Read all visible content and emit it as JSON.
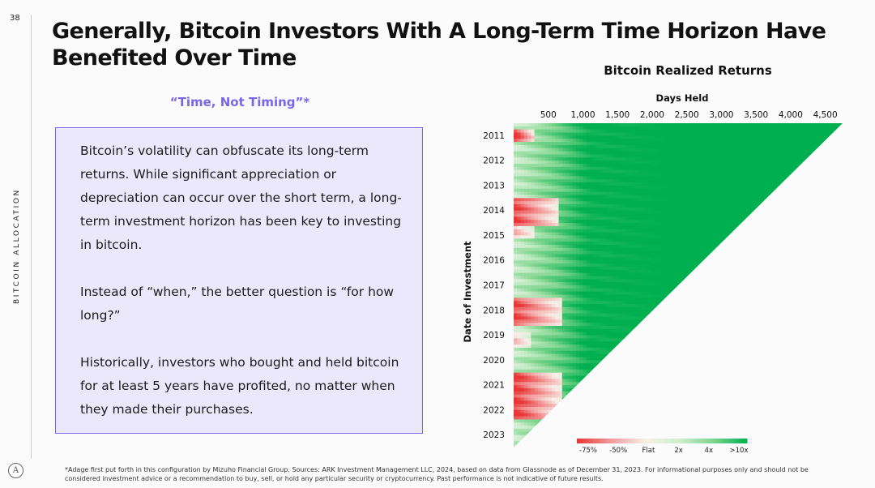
{
  "page": {
    "number": "38",
    "side_label": "BITCOIN ALLOCATION",
    "logo_glyph": "A",
    "title": "Generally, Bitcoin Investors With A Long-Term Time Horizon Have Benefited Over Time",
    "quote": "“Time, Not Timing”*",
    "paragraphs": [
      "Bitcoin’s volatility can obfuscate its long-term returns. While significant appreciation or depreciation can occur over the short term, a long-term investment horizon has been key to investing in bitcoin.",
      "Instead of “when,” the better question is “for how long?”",
      "Historically, investors who bought and held bitcoin for at least 5 years have profited, no matter when they made their purchases."
    ],
    "footnote": "*Adage first put forth in this configuration by Mizuho Financial Group. Sources: ARK Investment Management LLC, 2024, based on data from Glassnode as of December 31, 2023. For informational purposes only and should not be considered investment advice or a recommendation to buy, sell, or hold any particular security or cryptocurrency. Past performance is not indicative of future results."
  },
  "colors": {
    "accent": "#7b66e8",
    "box_fill": "#ebe8fb",
    "gain": "#00b050",
    "loss": "#ee3b3b",
    "flat": "#f7efe8"
  },
  "chart_data": {
    "type": "heatmap",
    "title": "Bitcoin Realized Returns",
    "xlabel": "Days Held",
    "ylabel": "Date of Investment",
    "x_ticks": [
      500,
      1000,
      1500,
      2000,
      2500,
      3000,
      3500,
      4000,
      4500
    ],
    "x_tick_labels": [
      "500",
      "1,000",
      "1,500",
      "2,000",
      "2,500",
      "3,000",
      "3,500",
      "4,000",
      "4,500"
    ],
    "xlim": [
      0,
      4750
    ],
    "y_ticks": [
      "2011",
      "2012",
      "2013",
      "2014",
      "2015",
      "2016",
      "2017",
      "2018",
      "2019",
      "2020",
      "2021",
      "2022",
      "2023"
    ],
    "ylim": [
      2011,
      2024
    ],
    "color_scale": {
      "labels": [
        "-75%",
        "-50%",
        "Flat",
        "2x",
        "4x",
        ">10x"
      ],
      "stops": [
        "#e83535",
        "#f29a9a",
        "#f7efe8",
        "#cfeecf",
        "#7fd58e",
        "#00b050"
      ]
    },
    "loss_regions": [
      {
        "start": 2011.25,
        "end": 2011.75,
        "max_days": 300,
        "depth": 1.0
      },
      {
        "start": 2014.0,
        "end": 2015.1,
        "max_days": 650,
        "depth": 0.9
      },
      {
        "start": 2015.0,
        "end": 2015.6,
        "max_days": 300,
        "depth": 0.5
      },
      {
        "start": 2018.0,
        "end": 2019.1,
        "max_days": 700,
        "depth": 0.9
      },
      {
        "start": 2019.4,
        "end": 2020.0,
        "max_days": 250,
        "depth": 0.45
      },
      {
        "start": 2021.0,
        "end": 2022.9,
        "max_days": 700,
        "depth": 0.95
      }
    ],
    "note": "Triangular matrix: returns for each purchase date (rows) held for N days (columns); longer holding periods trend to >10x gains."
  }
}
